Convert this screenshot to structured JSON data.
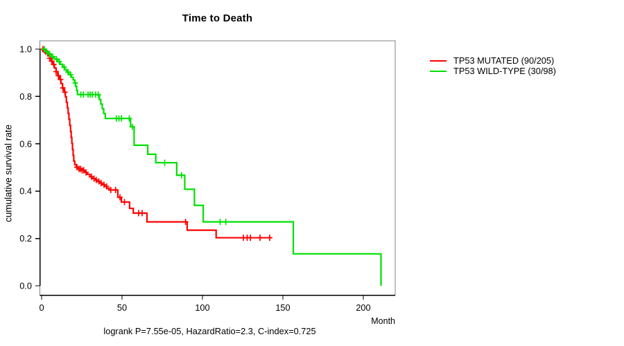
{
  "chart_data": {
    "type": "line",
    "subtype": "kaplan-meier-step",
    "title": "Time to Death",
    "xlabel": "Month",
    "ylabel": "cumulative survival rate",
    "footer": "logrank P=7.55e-05, HazardRatio=2.3, C-index=0.725",
    "xlim": [
      0,
      220
    ],
    "ylim": [
      0.0,
      1.0
    ],
    "x_ticks": [
      0,
      50,
      100,
      150,
      200
    ],
    "y_ticks": [
      "0.0",
      "0.2",
      "0.4",
      "0.6",
      "0.8",
      "1.0"
    ],
    "grid": "off",
    "legend_position": "right-outside-top",
    "axis_color": "#000000",
    "box_color": "#808080",
    "series": [
      {
        "name": "TP53 MUTATED (90/205)",
        "color": "#ff0000",
        "end_month": 143,
        "steps": [
          [
            0,
            1.0
          ],
          [
            1,
            0.995
          ],
          [
            2,
            0.989
          ],
          [
            3,
            0.982
          ],
          [
            4,
            0.972
          ],
          [
            5,
            0.961
          ],
          [
            6,
            0.949
          ],
          [
            7,
            0.935
          ],
          [
            8,
            0.92
          ],
          [
            9,
            0.905
          ],
          [
            10,
            0.888
          ],
          [
            11,
            0.872
          ],
          [
            12,
            0.855
          ],
          [
            13,
            0.836
          ],
          [
            14,
            0.818
          ],
          [
            14.8,
            0.798
          ],
          [
            15.4,
            0.775
          ],
          [
            16,
            0.752
          ],
          [
            16.5,
            0.728
          ],
          [
            17,
            0.704
          ],
          [
            17.5,
            0.678
          ],
          [
            18,
            0.652
          ],
          [
            18.4,
            0.627
          ],
          [
            18.8,
            0.602
          ],
          [
            19.2,
            0.576
          ],
          [
            19.6,
            0.551
          ],
          [
            20,
            0.527
          ],
          [
            20.6,
            0.512
          ],
          [
            21.5,
            0.501
          ],
          [
            23,
            0.494
          ],
          [
            25,
            0.488
          ],
          [
            27,
            0.479
          ],
          [
            28.5,
            0.471
          ],
          [
            30,
            0.461
          ],
          [
            31.5,
            0.453
          ],
          [
            33,
            0.447
          ],
          [
            34.5,
            0.441
          ],
          [
            36,
            0.434
          ],
          [
            37.5,
            0.427
          ],
          [
            39,
            0.42
          ],
          [
            40.5,
            0.412
          ],
          [
            42,
            0.405
          ],
          [
            47.4,
            0.374
          ],
          [
            49.6,
            0.354
          ],
          [
            54.7,
            0.327
          ],
          [
            57,
            0.307
          ],
          [
            65.5,
            0.27
          ],
          [
            90.5,
            0.235
          ],
          [
            108.5,
            0.203
          ]
        ],
        "censor_months": [
          0.8,
          1.7,
          2.6,
          3.8,
          5,
          6.3,
          7.6,
          9,
          10.4,
          11.8,
          13.2,
          14.5,
          22,
          23.2,
          24.2,
          25.2,
          26.2,
          27.6,
          31,
          32.6,
          34,
          35.6,
          37,
          38.8,
          40.4,
          43,
          46,
          48.7,
          51.5,
          60.3,
          62.5,
          89.5,
          125.5,
          127.8,
          129.8,
          135.8,
          141.8
        ]
      },
      {
        "name": "TP53 WILD-TYPE (30/98)",
        "color": "#00e000",
        "end_month": 211,
        "steps": [
          [
            0,
            1.0
          ],
          [
            2,
            0.99
          ],
          [
            4,
            0.979
          ],
          [
            6,
            0.968
          ],
          [
            8,
            0.958
          ],
          [
            10,
            0.947
          ],
          [
            11.5,
            0.936
          ],
          [
            13,
            0.924
          ],
          [
            14.5,
            0.913
          ],
          [
            15.6,
            0.903
          ],
          [
            17,
            0.892
          ],
          [
            18.4,
            0.881
          ],
          [
            19.6,
            0.87
          ],
          [
            20.6,
            0.857
          ],
          [
            21.2,
            0.842
          ],
          [
            21.8,
            0.825
          ],
          [
            22.3,
            0.808
          ],
          [
            35.9,
            0.787
          ],
          [
            36.8,
            0.768
          ],
          [
            37.7,
            0.748
          ],
          [
            38.6,
            0.728
          ],
          [
            39.6,
            0.707
          ],
          [
            55.3,
            0.672
          ],
          [
            57.5,
            0.594
          ],
          [
            66,
            0.556
          ],
          [
            71,
            0.52
          ],
          [
            84,
            0.467
          ],
          [
            89,
            0.408
          ],
          [
            95,
            0.34
          ],
          [
            100.5,
            0.27
          ],
          [
            156.5,
            0.135
          ],
          [
            211,
            0.0
          ]
        ],
        "censor_months": [
          1.7,
          3,
          5,
          7,
          9.3,
          11,
          14,
          16.4,
          18.1,
          20.9,
          24.4,
          25.9,
          28.9,
          30.2,
          31.5,
          33.6,
          35.2,
          46.5,
          48.1,
          49.6,
          54.5,
          56.4,
          76.5,
          87,
          111,
          114.5
        ]
      }
    ]
  }
}
